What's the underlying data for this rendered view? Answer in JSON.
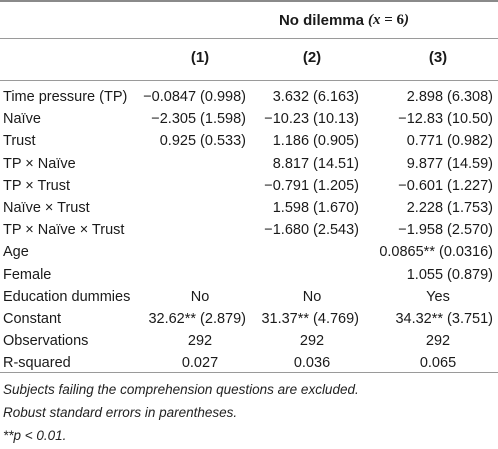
{
  "table": {
    "group_header": {
      "label": "No dilemma",
      "condition_var": "x",
      "condition_op": "=",
      "condition_val": "6"
    },
    "column_headers": [
      "(1)",
      "(2)",
      "(3)"
    ],
    "rows": [
      {
        "label": "Time pressure (TP)",
        "c1": "−0.0847 (0.998)",
        "c2": "3.632 (6.163)",
        "c3": "2.898 (6.308)"
      },
      {
        "label": "Naïve",
        "c1": "−2.305 (1.598)",
        "c2": "−10.23 (10.13)",
        "c3": "−12.83 (10.50)"
      },
      {
        "label": "Trust",
        "c1": "0.925 (0.533)",
        "c2": "1.186 (0.905)",
        "c3": "0.771 (0.982)"
      },
      {
        "label": "TP × Naïve",
        "c1": "",
        "c2": "8.817 (14.51)",
        "c3": "9.877 (14.59)"
      },
      {
        "label": "TP × Trust",
        "c1": "",
        "c2": "−0.791 (1.205)",
        "c3": "−0.601 (1.227)"
      },
      {
        "label": "Naïve × Trust",
        "c1": "",
        "c2": "1.598 (1.670)",
        "c3": "2.228 (1.753)"
      },
      {
        "label": "TP × Naïve × Trust",
        "c1": "",
        "c2": "−1.680 (2.543)",
        "c3": "−1.958 (2.570)"
      },
      {
        "label": "Age",
        "c1": "",
        "c2": "",
        "c3": "0.0865** (0.0316)"
      },
      {
        "label": "Female",
        "c1": "",
        "c2": "",
        "c3": "1.055 (0.879)"
      },
      {
        "label": "Education dummies",
        "c1": "No",
        "c2": "No",
        "c3": "Yes",
        "centered": true
      },
      {
        "label": "Constant",
        "c1": "32.62** (2.879)",
        "c2": "31.37** (4.769)",
        "c3": "34.32** (3.751)"
      },
      {
        "label": "Observations",
        "c1": "292",
        "c2": "292",
        "c3": "292",
        "centered": true
      },
      {
        "label": "R-squared",
        "c1": "0.027",
        "c2": "0.036",
        "c3": "0.065",
        "centered": true
      }
    ],
    "notes": [
      "Subjects failing the comprehension questions are excluded.",
      "Robust standard errors in parentheses.",
      "**p < 0.01."
    ]
  }
}
